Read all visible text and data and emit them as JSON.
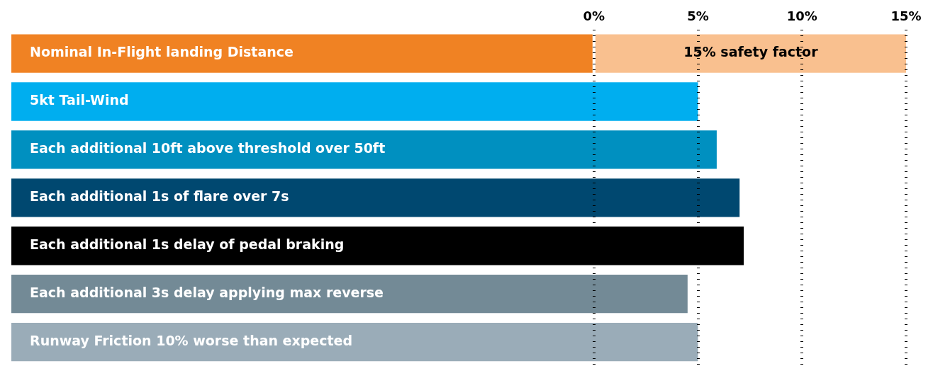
{
  "chart_data": {
    "type": "bar",
    "orientation": "horizontal",
    "categories": [
      "Nominal In-Flight landing Distance",
      "5kt Tail-Wind",
      "Each additional 10ft above threshold over 50ft",
      "Each additional 1s of flare over 7s",
      "Each additional 1s delay of pedal braking",
      "Each additional 3s delay applying max reverse",
      "Runway Friction 10% worse than expected"
    ],
    "series": [
      {
        "colors": [
          "#f08223",
          "#00aeef",
          "#0090c0",
          "#004870",
          "#000000",
          "#738a96",
          "#9aacb8"
        ],
        "base": [
          -28,
          -28,
          -28,
          -28,
          -28,
          -28,
          -28
        ],
        "values": [
          28,
          33,
          33.9,
          35,
          35.2,
          32.5,
          33
        ]
      },
      {
        "name": "15% safety factor",
        "color": "#f9c08f",
        "base": [
          0,
          null,
          null,
          null,
          null,
          null,
          null
        ],
        "values": [
          15,
          null,
          null,
          null,
          null,
          null,
          null
        ]
      }
    ],
    "xlim": [
      -28,
      15
    ],
    "xticks": [
      {
        "value": 0,
        "label": "0%"
      },
      {
        "value": 5,
        "label": "5%"
      },
      {
        "value": 10,
        "label": "10%"
      },
      {
        "value": 15,
        "label": "15%"
      }
    ],
    "grid": "x",
    "legend": false
  }
}
